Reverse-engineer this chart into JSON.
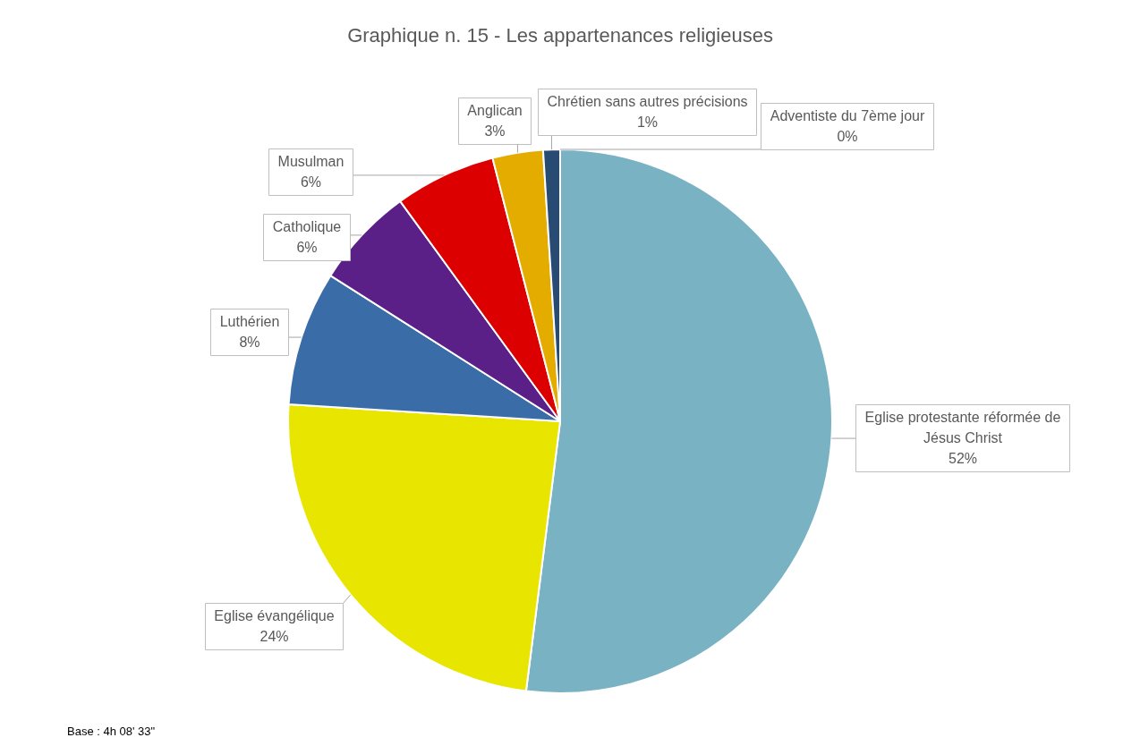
{
  "chart_data": {
    "type": "pie",
    "title": "Graphique n. 15 - Les appartenances religieuses",
    "categories": [
      "Eglise protestante réformée de Jésus Christ",
      "Eglise évangélique",
      "Luthérien",
      "Catholique",
      "Musulman",
      "Anglican",
      "Chrétien sans autres précisions",
      "Adventiste du 7ème jour"
    ],
    "values": [
      52,
      24,
      8,
      6,
      6,
      3,
      1,
      0
    ],
    "value_labels": [
      "52%",
      "24%",
      "8%",
      "6%",
      "6%",
      "3%",
      "1%",
      "0%"
    ],
    "colors": [
      "#79b3c3",
      "#e8e600",
      "#3a6ca8",
      "#5a2088",
      "#dd0000",
      "#e5ac00",
      "#284b74",
      "#4a7fb5"
    ],
    "legend": false,
    "annotations": [
      "Base : 4h 08' 33\""
    ]
  }
}
